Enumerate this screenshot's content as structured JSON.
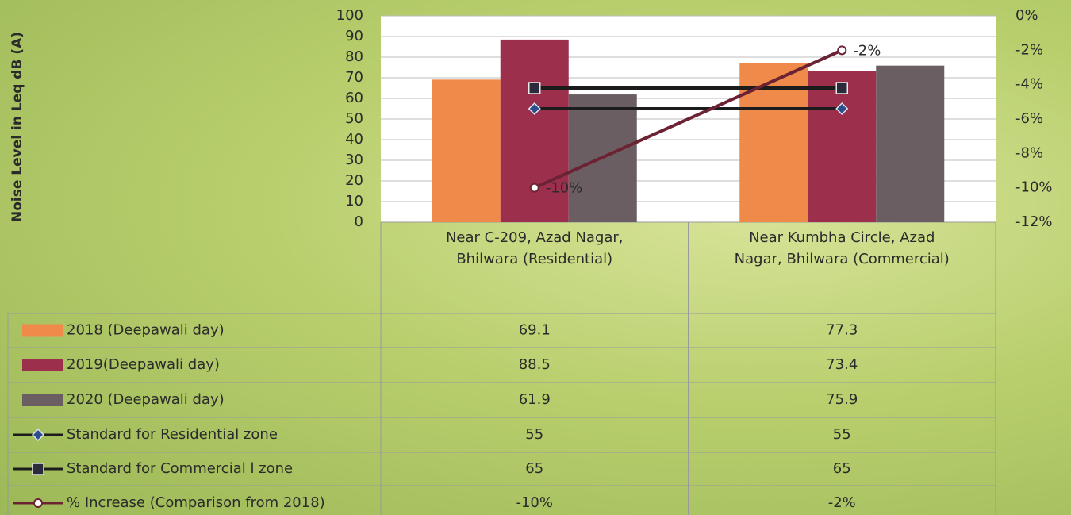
{
  "chart_data": {
    "type": "bar",
    "y_label": "Noise Level in Leq dB (A)",
    "categories": [
      "Near C-209, Azad Nagar, Bhilwara (Residential)",
      "Near Kumbha Circle, Azad Nagar, Bhilwara (Commercial)"
    ],
    "series": [
      {
        "name": "2018 (Deepawali day)",
        "type": "bar",
        "color": "#f08a4b",
        "values": [
          69.1,
          77.3
        ]
      },
      {
        "name": "2019(Deepawali day)",
        "type": "bar",
        "color": "#9b2f4c",
        "values": [
          88.5,
          73.4
        ]
      },
      {
        "name": "2020 (Deepawali day)",
        "type": "bar",
        "color": "#6b5e62",
        "values": [
          61.9,
          75.9
        ]
      },
      {
        "name": "Standard for Residential zone",
        "type": "line",
        "marker": "diamond",
        "color": "#1c1c1c",
        "values": [
          55,
          55
        ]
      },
      {
        "name": "Standard for Commercial l zone",
        "type": "line",
        "marker": "square",
        "color": "#1c1c1c",
        "values": [
          65,
          65
        ]
      },
      {
        "name": "% Increase (Comparison from 2018)",
        "type": "line",
        "marker": "circle",
        "axis": "y2",
        "color": "#6b2233",
        "values": [
          -10,
          -2
        ],
        "value_labels": [
          "-10%",
          "-2%"
        ]
      }
    ],
    "ylim": [
      0,
      100
    ],
    "yticks": [
      0,
      10,
      20,
      30,
      40,
      50,
      60,
      70,
      80,
      90,
      100
    ],
    "y2lim": [
      -12,
      0
    ],
    "y2ticks": [
      {
        "value": 0,
        "label": "0%"
      },
      {
        "value": -2,
        "label": "-2%"
      },
      {
        "value": -4,
        "label": "-4%"
      },
      {
        "value": -6,
        "label": "-6%"
      },
      {
        "value": -8,
        "label": "-8%"
      },
      {
        "value": -10,
        "label": "-10%"
      },
      {
        "value": -12,
        "label": "-12%"
      }
    ],
    "grid": true
  }
}
